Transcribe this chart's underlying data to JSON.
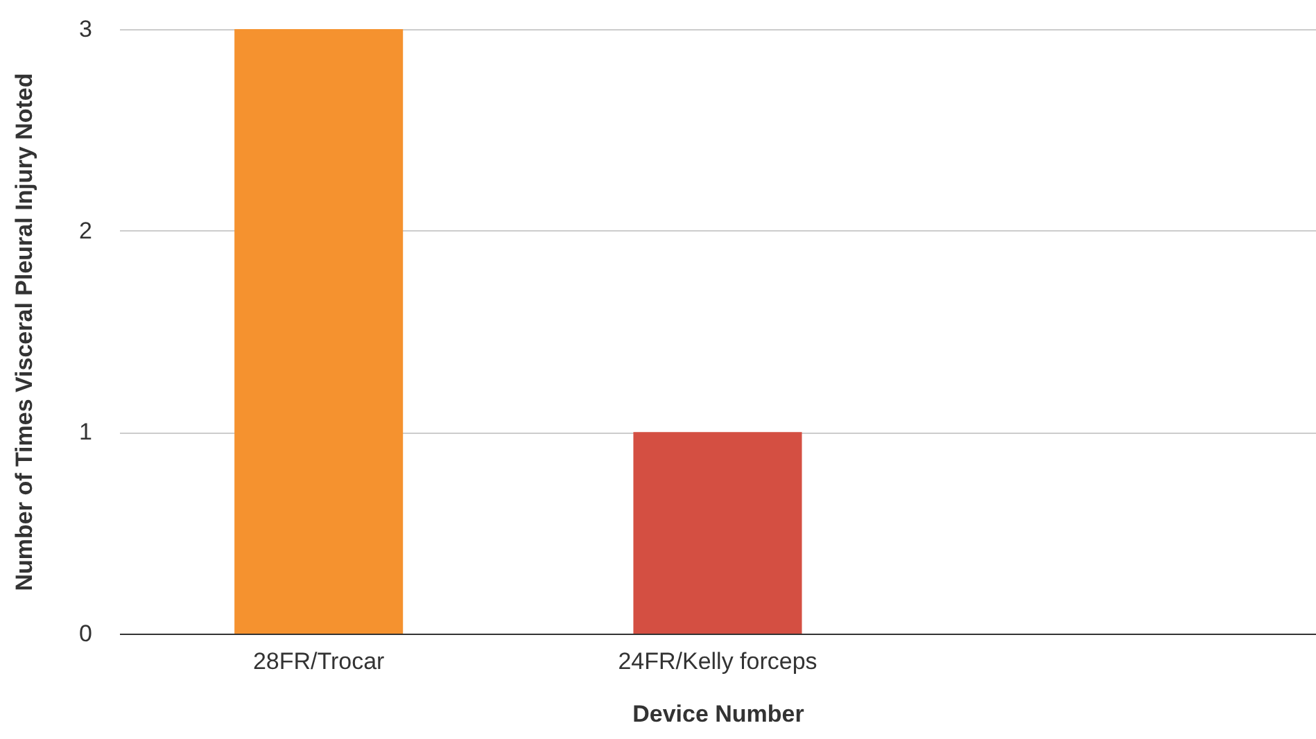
{
  "chart_data": {
    "type": "bar",
    "xlabel": "Device Number",
    "ylabel": "Number of Times Visceral Pleural Injury Noted",
    "categories": [
      "28FR/Trocar",
      "24FR/Kelly forceps",
      null
    ],
    "values": [
      3,
      1,
      0
    ],
    "colors": [
      "#f5922f",
      "#d44f42",
      "#4285f4"
    ],
    "ylim": [
      0,
      3
    ],
    "yticks": [
      0,
      1,
      2,
      3
    ],
    "grid": "y"
  }
}
